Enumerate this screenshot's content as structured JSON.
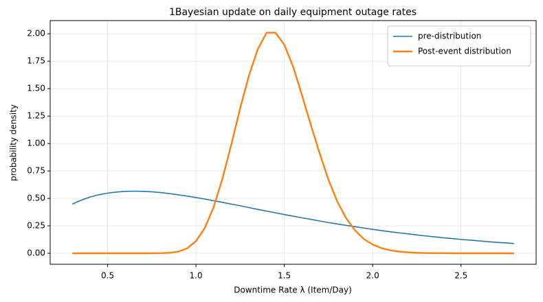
{
  "chart_data": {
    "type": "line",
    "title": "1Bayesian update on daily equipment outage rates",
    "xlabel": "Downtime Rate λ (Item/Day)",
    "ylabel": "probability density",
    "x": [
      0.3,
      0.35,
      0.4,
      0.45,
      0.5,
      0.55,
      0.6,
      0.65,
      0.7,
      0.75,
      0.8,
      0.85,
      0.9,
      0.95,
      1.0,
      1.05,
      1.1,
      1.15,
      1.2,
      1.25,
      1.3,
      1.35,
      1.4,
      1.45,
      1.5,
      1.55,
      1.6,
      1.65,
      1.7,
      1.75,
      1.8,
      1.85,
      1.9,
      1.95,
      2.0,
      2.05,
      2.1,
      2.15,
      2.2,
      2.25,
      2.3,
      2.35,
      2.4,
      2.45,
      2.5,
      2.55,
      2.6,
      2.65,
      2.7,
      2.75,
      2.8
    ],
    "series": [
      {
        "name": "pre-distribution",
        "color": "#1f77b4",
        "width": 1.6,
        "values": [
          0.448,
          0.483,
          0.512,
          0.533,
          0.548,
          0.558,
          0.564,
          0.566,
          0.564,
          0.56,
          0.553,
          0.544,
          0.533,
          0.521,
          0.508,
          0.494,
          0.479,
          0.464,
          0.448,
          0.433,
          0.416,
          0.4,
          0.384,
          0.369,
          0.353,
          0.338,
          0.323,
          0.309,
          0.294,
          0.28,
          0.267,
          0.254,
          0.242,
          0.23,
          0.218,
          0.207,
          0.196,
          0.186,
          0.177,
          0.167,
          0.158,
          0.15,
          0.141,
          0.134,
          0.126,
          0.12,
          0.113,
          0.106,
          0.1,
          0.095,
          0.089
        ]
      },
      {
        "name": "Post-event distribution",
        "color": "#ff7f0e",
        "width": 2.4,
        "values": [
          0,
          0,
          0,
          0,
          0,
          0,
          0,
          0,
          0,
          0,
          0.001,
          0.004,
          0.015,
          0.045,
          0.11,
          0.23,
          0.42,
          0.68,
          0.99,
          1.32,
          1.62,
          1.86,
          2.01,
          2.01,
          1.9,
          1.7,
          1.44,
          1.17,
          0.91,
          0.67,
          0.47,
          0.32,
          0.21,
          0.13,
          0.08,
          0.047,
          0.027,
          0.015,
          0.008,
          0.004,
          0.002,
          0.001,
          0.001,
          0,
          0,
          0,
          0,
          0,
          0,
          0,
          0
        ]
      }
    ],
    "xlim": [
      0.175,
      2.925
    ],
    "ylim": [
      -0.1,
      2.12
    ],
    "xticks": [
      0.5,
      {
        "value": 1.0,
        "label": "1.0"
      },
      1.5,
      {
        "value": 2.0,
        "label": "2.0"
      },
      2.5
    ],
    "yticks": [
      {
        "value": 0,
        "label": "0.00"
      },
      {
        "value": 0.25,
        "label": "0.25"
      },
      {
        "value": 0.5,
        "label": "0.50"
      },
      {
        "value": 0.75,
        "label": "0.75"
      },
      {
        "value": 1.0,
        "label": "1.00"
      },
      {
        "value": 1.25,
        "label": "1.25"
      },
      {
        "value": 1.5,
        "label": "1.50"
      },
      {
        "value": 1.75,
        "label": "1.75"
      },
      {
        "value": 2.0,
        "label": "2.00"
      }
    ],
    "grid": true,
    "legend": "upper-right"
  }
}
